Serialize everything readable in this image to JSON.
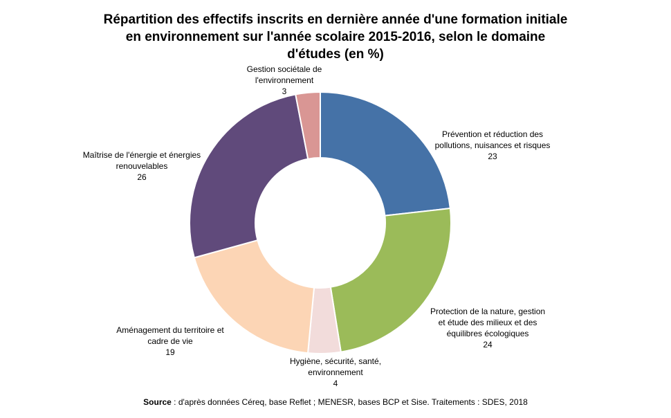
{
  "chart_data": {
    "type": "pie",
    "title_lines": [
      "Répartition des effectifs inscrits en dernière année d'une formation initiale",
      "en environnement sur l'année scolaire 2015-2016, selon le domaine",
      "d'études (en %)"
    ],
    "slices": [
      {
        "label_lines": [
          "Prévention et réduction des",
          "pollutions, nuisances et risques"
        ],
        "value": 23,
        "color": "#4572A7"
      },
      {
        "label_lines": [
          "Protection de la nature, gestion",
          "et étude des milieux et des",
          "équilibres écologiques"
        ],
        "value": 24,
        "color": "#9BBB59"
      },
      {
        "label_lines": [
          "Hygiène, sécurité, santé,",
          "environnement"
        ],
        "value": 4,
        "color": "#F2DCDB"
      },
      {
        "label_lines": [
          "Aménagement du territoire et",
          "cadre de vie"
        ],
        "value": 19,
        "color": "#FCD5B5"
      },
      {
        "label_lines": [
          "Maîtrise de l'énergie et énergies",
          "renouvelables"
        ],
        "value": 26,
        "color": "#604A7B"
      },
      {
        "label_lines": [
          "Gestion sociétale de",
          "l'environnement"
        ],
        "value": 3,
        "color": "#D99694"
      }
    ]
  },
  "source": {
    "prefix": "Source",
    "text": " : d'après données Céreq, base Reflet ; MENESR, bases BCP et Sise. Traitements : SDES, 2018"
  }
}
